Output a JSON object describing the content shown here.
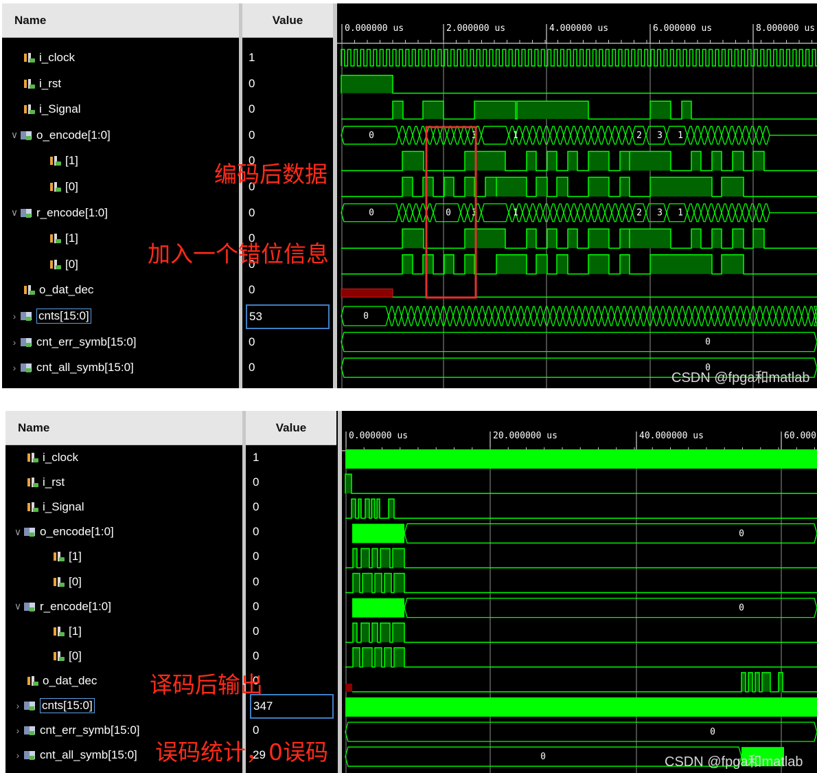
{
  "panel_top": {
    "headers": {
      "name": "Name",
      "value": "Value"
    },
    "signals": [
      {
        "name": "i_clock",
        "value": "1",
        "kind": "bit",
        "indent": 0,
        "expand": ""
      },
      {
        "name": "i_rst",
        "value": "0",
        "kind": "bit",
        "indent": 0,
        "expand": ""
      },
      {
        "name": "i_Signal",
        "value": "0",
        "kind": "bit",
        "indent": 0,
        "expand": ""
      },
      {
        "name": "o_encode[1:0]",
        "value": "0",
        "kind": "bus",
        "indent": 0,
        "expand": "expanded"
      },
      {
        "name": "[1]",
        "value": "0",
        "kind": "bit",
        "indent": 1,
        "expand": ""
      },
      {
        "name": "[0]",
        "value": "0",
        "kind": "bit",
        "indent": 1,
        "expand": ""
      },
      {
        "name": "r_encode[1:0]",
        "value": "0",
        "kind": "bus",
        "indent": 0,
        "expand": "expanded"
      },
      {
        "name": "[1]",
        "value": "0",
        "kind": "bit",
        "indent": 1,
        "expand": ""
      },
      {
        "name": "[0]",
        "value": "0",
        "kind": "bit",
        "indent": 1,
        "expand": ""
      },
      {
        "name": "o_dat_dec",
        "value": "0",
        "kind": "bit",
        "indent": 0,
        "expand": ""
      },
      {
        "name": "cnts[15:0]",
        "value": "53",
        "kind": "bus",
        "indent": 0,
        "expand": "collapsed",
        "selected": true
      },
      {
        "name": "cnt_err_symb[15:0]",
        "value": "0",
        "kind": "bus",
        "indent": 0,
        "expand": "collapsed"
      },
      {
        "name": "cnt_all_symb[15:0]",
        "value": "0",
        "kind": "bus",
        "indent": 0,
        "expand": "collapsed"
      }
    ],
    "time_ticks": [
      "0.000000 us",
      "2.000000 us",
      "4.000000 us",
      "6.000000 us",
      "8.000000 us"
    ],
    "bus_labels": {
      "o_encode": [
        "0",
        "3",
        "1",
        "2",
        "3",
        "1"
      ],
      "r_encode": [
        "0",
        "0",
        "3",
        "1",
        "2",
        "3",
        "1"
      ],
      "cnts": "0",
      "cnt_err_symb": "0",
      "cnt_all_symb": "0"
    },
    "annotations": [
      "编码后数据",
      "加入一个错位信息"
    ],
    "watermark": "CSDN @fpga和matlab"
  },
  "panel_bottom": {
    "headers": {
      "name": "Name",
      "value": "Value"
    },
    "signals": [
      {
        "name": "i_clock",
        "value": "1",
        "kind": "bit",
        "indent": 0,
        "expand": ""
      },
      {
        "name": "i_rst",
        "value": "0",
        "kind": "bit",
        "indent": 0,
        "expand": ""
      },
      {
        "name": "i_Signal",
        "value": "0",
        "kind": "bit",
        "indent": 0,
        "expand": ""
      },
      {
        "name": "o_encode[1:0]",
        "value": "0",
        "kind": "bus",
        "indent": 0,
        "expand": "expanded"
      },
      {
        "name": "[1]",
        "value": "0",
        "kind": "bit",
        "indent": 1,
        "expand": ""
      },
      {
        "name": "[0]",
        "value": "0",
        "kind": "bit",
        "indent": 1,
        "expand": ""
      },
      {
        "name": "r_encode[1:0]",
        "value": "0",
        "kind": "bus",
        "indent": 0,
        "expand": "expanded"
      },
      {
        "name": "[1]",
        "value": "0",
        "kind": "bit",
        "indent": 1,
        "expand": ""
      },
      {
        "name": "[0]",
        "value": "0",
        "kind": "bit",
        "indent": 1,
        "expand": ""
      },
      {
        "name": "o_dat_dec",
        "value": "0",
        "kind": "bit",
        "indent": 0,
        "expand": ""
      },
      {
        "name": "cnts[15:0]",
        "value": "347",
        "kind": "bus",
        "indent": 0,
        "expand": "collapsed",
        "selected": true
      },
      {
        "name": "cnt_err_symb[15:0]",
        "value": "0",
        "kind": "bus",
        "indent": 0,
        "expand": "collapsed"
      },
      {
        "name": "cnt_all_symb[15:0]",
        "value": "29",
        "kind": "bus",
        "indent": 0,
        "expand": "collapsed"
      }
    ],
    "time_ticks": [
      "0.000000 us",
      "20.000000 us",
      "40.000000 us",
      "60.000"
    ],
    "bus_labels": {
      "o_encode": "0",
      "r_encode": "0",
      "cnt_err_symb": "0",
      "cnt_all_symb": "0"
    },
    "annotations": [
      "译码后输出",
      "误码统计，0误码"
    ],
    "watermark": "CSDN @fpga和matlab"
  },
  "colors": {
    "wave": "#00ff00",
    "wave_fill": "#006400",
    "cursor": "#d0d0d0",
    "reset_red": "#8b0000",
    "annotation": "#ff2a1a",
    "highlight_box": "#e53030"
  }
}
